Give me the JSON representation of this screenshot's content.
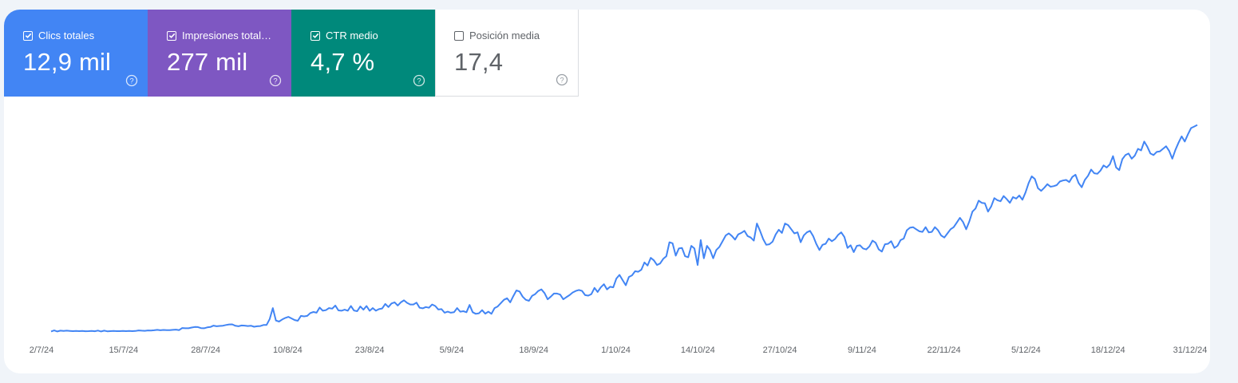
{
  "metrics": [
    {
      "label": "Clics totales",
      "value": "12,9 mil",
      "checked": true,
      "color": "#4285f4",
      "icon": "help-icon"
    },
    {
      "label": "Impresiones total…",
      "value": "277 mil",
      "checked": true,
      "color": "#7e57c2",
      "icon": "help-icon"
    },
    {
      "label": "CTR medio",
      "value": "4,7 %",
      "checked": true,
      "color": "#00897b",
      "icon": "help-icon"
    },
    {
      "label": "Posición media",
      "value": "17,4",
      "checked": false,
      "color": "#ffffff",
      "icon": "help-icon"
    }
  ],
  "chart_data": {
    "type": "line",
    "x_tick_labels": [
      "2/7/24",
      "15/7/24",
      "28/7/24",
      "10/8/24",
      "23/8/24",
      "5/9/24",
      "18/9/24",
      "1/10/24",
      "14/10/24",
      "27/10/24",
      "9/11/24",
      "22/11/24",
      "5/12/24",
      "18/12/24",
      "31/12/24"
    ],
    "y_axis_labels_shown": false,
    "grid": false,
    "series": [
      {
        "color": "#4285f4",
        "values": [
          0.5,
          1.5,
          0.5,
          1.2,
          1.0,
          1.2,
          1.0,
          0.8,
          0.9,
          0.8,
          0.9,
          0.7,
          0.8,
          0.9,
          0.7,
          1.3,
          0.5,
          1.2,
          0.6,
          0.8,
          0.9,
          0.8,
          0.8,
          1.0,
          0.8,
          0.9,
          0.8,
          0.9,
          1.5,
          1.2,
          1.1,
          1.5,
          1.3,
          1.6,
          2.0,
          1.6,
          1.9,
          1.8,
          1.8,
          2.0,
          2.2,
          1.8,
          3.8,
          3.5,
          3.5,
          4.2,
          4.8,
          4.7,
          3.7,
          3.5,
          4.4,
          4.8,
          6.1,
          5.5,
          5.8,
          6.0,
          6.7,
          7.2,
          7.3,
          5.9,
          5.5,
          6.2,
          6.1,
          5.7,
          6.0,
          5.0,
          5.5,
          5.7,
          6.7,
          6.8,
          12.5,
          23.0,
          11.0,
          10.0,
          12.0,
          13.5,
          14.5,
          13.0,
          11.5,
          10.8,
          15.5,
          15.0,
          15.5,
          18.2,
          19.2,
          18.5,
          23.5,
          20.5,
          21.0,
          23.0,
          22.5,
          25.5,
          20.8,
          20.5,
          21.5,
          20.5,
          25.0,
          20.6,
          20.0,
          24.5,
          21.5,
          25.0,
          20.4,
          23.0,
          20.5,
          22.0,
          22.6,
          27.0,
          24.0,
          27.5,
          28.5,
          25.5,
          28.5,
          30.5,
          28.0,
          26.5,
          26.5,
          28.2,
          23.3,
          22.8,
          24.0,
          23.3,
          26.5,
          25.0,
          21.6,
          22.0,
          18.5,
          19.5,
          18.5,
          19.0,
          23.0,
          19.5,
          20.0,
          19.0,
          26.0,
          19.0,
          17.5,
          18.0,
          21.0,
          17.6,
          19.5,
          17.5,
          23.0,
          24.5,
          27.8,
          31.0,
          32.5,
          28.5,
          34.5,
          40.0,
          39.0,
          34.0,
          31.0,
          30.0,
          34.8,
          36.5,
          39.5,
          41.0,
          37.5,
          31.5,
          34.0,
          37.0,
          37.0,
          36.0,
          31.5,
          33.5,
          35.5,
          38.0,
          39.5,
          40.5,
          39.5,
          35.5,
          35.0,
          36.5,
          42.5,
          38.5,
          43.0,
          46.0,
          41.0,
          43.5,
          43.0,
          51.5,
          55.0,
          50.0,
          45.0,
          53.0,
          54.5,
          58.5,
          58.0,
          60.0,
          67.0,
          64.0,
          71.5,
          69.0,
          64.5,
          66.0,
          70.5,
          73.0,
          86.5,
          85.5,
          73.5,
          80.5,
          81.0,
          73.0,
          72.0,
          83.0,
          80.5,
          64.5,
          88.5,
          71.0,
          83.0,
          79.0,
          71.0,
          79.0,
          82.0,
          87.5,
          93.0,
          95.0,
          92.5,
          89.0,
          94.0,
          95.5,
          97.5,
          92.5,
          91.0,
          88.0,
          104.5,
          97.5,
          89.5,
          84.0,
          84.5,
          87.0,
          94.0,
          98.5,
          95.5,
          104.5,
          103.0,
          99.0,
          95.0,
          96.0,
          86.5,
          93.0,
          96.0,
          97.5,
          92.5,
          85.0,
          79.0,
          84.0,
          85.0,
          90.0,
          87.5,
          89.5,
          93.5,
          96.0,
          91.5,
          81.0,
          83.5,
          77.0,
          83.0,
          83.5,
          80.5,
          79.5,
          82.5,
          88.0,
          86.0,
          79.5,
          77.5,
          84.5,
          85.0,
          87.5,
          81.0,
          83.0,
          88.5,
          90.0,
          98.0,
          100.5,
          101.0,
          99.0,
          97.0,
          96.5,
          101.0,
          96.0,
          96.5,
          101.0,
          98.0,
          93.0,
          91.0,
          95.0,
          99.0,
          101.0,
          105.5,
          110.0,
          106.0,
          99.0,
          106.5,
          116.0,
          119.0,
          126.5,
          124.5,
          124.0,
          116.0,
          121.0,
          129.0,
          127.0,
          126.0,
          131.0,
          128.0,
          124.5,
          130.0,
          128.5,
          131.5,
          127.5,
          134.5,
          143.5,
          150.0,
          147.5,
          138.5,
          136.0,
          139.0,
          142.5,
          140.0,
          140.5,
          141.5,
          145.0,
          146.0,
          146.5,
          144.5,
          149.5,
          151.5,
          143.5,
          139.5,
          146.5,
          150.5,
          156.5,
          153.0,
          152.5,
          155.5,
          160.5,
          158.5,
          161.5,
          169.5,
          158.5,
          156.0,
          166.5,
          170.5,
          172.0,
          167.0,
          170.0,
          176.5,
          175.0,
          183.5,
          178.5,
          172.0,
          170.5,
          173.5,
          174.0,
          176.5,
          179.0,
          174.5,
          167.0,
          175.5,
          182.5,
          188.5,
          183.5,
          190.5,
          196.5,
          198.0,
          199.5
        ]
      }
    ]
  }
}
